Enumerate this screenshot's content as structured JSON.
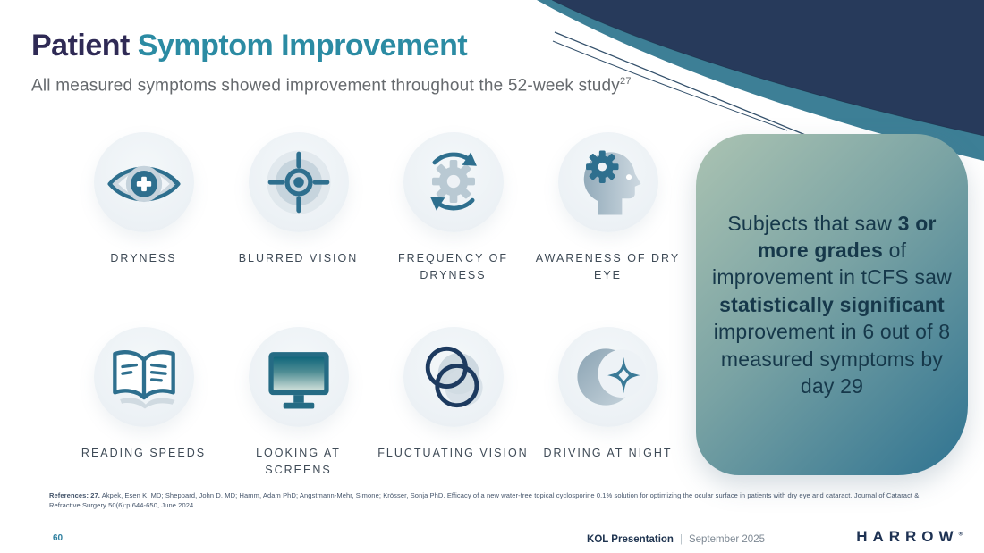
{
  "slide": {
    "title_part1": "Patient",
    "title_part2": " Symptom Improvement",
    "subtitle": "All measured symptoms showed improvement throughout the 52-week study",
    "subtitle_superscript": "27"
  },
  "symptoms": [
    {
      "icon": "eye-plus-icon",
      "label": "DRYNESS"
    },
    {
      "icon": "target-icon",
      "label": "BLURRED VISION"
    },
    {
      "icon": "gear-cycle-icon",
      "label": "FREQUENCY OF DRYNESS"
    },
    {
      "icon": "head-gear-icon",
      "label": "AWARENESS OF DRY EYE"
    },
    {
      "icon": "open-book-icon",
      "label": "READING SPEEDS"
    },
    {
      "icon": "monitor-icon",
      "label": "LOOKING AT SCREENS"
    },
    {
      "icon": "overlapping-circles-icon",
      "label": "FLUCTUATING VISION"
    },
    {
      "icon": "moon-star-icon",
      "label": "DRIVING AT NIGHT"
    }
  ],
  "callout": {
    "segments": [
      {
        "text": "Subjects that saw ",
        "bold": false
      },
      {
        "text": "3 or more grades",
        "bold": true
      },
      {
        "text": " of improvement in tCFS saw ",
        "bold": false
      },
      {
        "text": "statistically significant",
        "bold": true
      },
      {
        "text": " improvement in 6 out of 8 measured symptoms by day 29",
        "bold": false
      }
    ]
  },
  "references": {
    "label": "References: 27.",
    "text": " Akpek, Esen K. MD; Sheppard, John D. MD; Hamm, Adam PhD; Angstmann-Mehr, Simone; Krösser, Sonja PhD. Efficacy of a new water-free topical cyclosporine 0.1% solution for optimizing the ocular surface in patients with dry eye and cataract. Journal of Cataract & Refractive Surgery 50(6):p 644-650, June 2024."
  },
  "footer": {
    "page_number": "60",
    "presentation_name": "KOL Presentation",
    "separator": "|",
    "date": "September 2025",
    "logo_text": "HARROW",
    "logo_mark": "®"
  },
  "colors": {
    "title_navy": "#2f2a55",
    "title_teal": "#2b8ba3",
    "icon_teal": "#2e6f8e",
    "icon_navy": "#1d3a5f",
    "panel_gradient_start": "#abc3b2",
    "panel_gradient_end": "#2f7391",
    "panel_text": "#16384a",
    "swoosh_navy": "#273a5b",
    "swoosh_teal": "#3d7f96",
    "page_number_teal": "#2e7f9f"
  }
}
